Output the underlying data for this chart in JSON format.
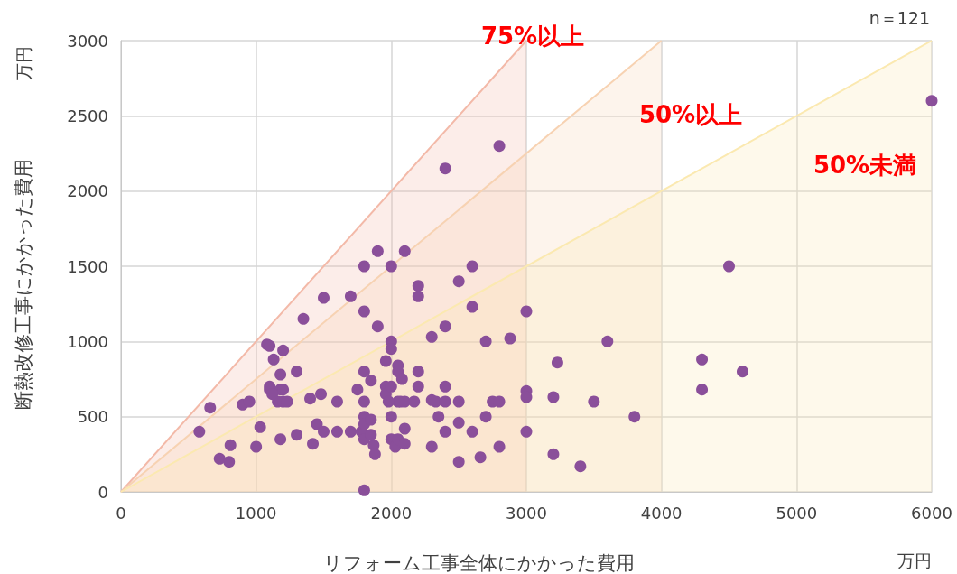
{
  "chart_data": {
    "type": "scatter",
    "xlabel": "リフォーム工事全体にかかった費用",
    "ylabel": "断熱改修工事にかかった費用",
    "xlim": [
      0,
      6000
    ],
    "xticks": [
      0,
      1000,
      2000,
      3000,
      4000,
      5000,
      6000
    ],
    "ylim": [
      0,
      3000
    ],
    "yticks": [
      0,
      500,
      1000,
      1500,
      2000,
      2500,
      3000
    ],
    "grid": true,
    "annotations": [
      "n＝121",
      "万円",
      "万円",
      "75%以上",
      "50%以上",
      "50%未満"
    ],
    "series": [
      {
        "type": "area",
        "color": "#f3b9a8",
        "marker": "none",
        "x": [
          0,
          3000
        ],
        "values": [
          0,
          3000
        ]
      },
      {
        "type": "area",
        "color": "#f7d2b2",
        "marker": "none",
        "x": [
          0,
          4000
        ],
        "values": [
          0,
          3000
        ]
      },
      {
        "type": "area",
        "color": "#fbe9b0",
        "marker": "none",
        "x": [
          0,
          6000
        ],
        "values": [
          0,
          3000
        ]
      },
      {
        "color": "#8a4f9a",
        "marker": "circle",
        "x": [
          580,
          660,
          730,
          800,
          810,
          900,
          950,
          1000,
          1030,
          1080,
          1100,
          1100,
          1100,
          1130,
          1160,
          1180,
          1180,
          1200,
          1200,
          1180,
          1200,
          1230,
          1300,
          1300,
          1350,
          1400,
          1420,
          1450,
          1480,
          1500,
          1500,
          1600,
          1600,
          1700,
          1700,
          1750,
          1780,
          1800,
          1800,
          1800,
          1800,
          1800,
          1800,
          1800,
          1800,
          1850,
          1850,
          1870,
          1880,
          1900,
          1900,
          1960,
          1960,
          1960,
          2000,
          2000,
          2000,
          2000,
          2000,
          2000,
          2030,
          2050,
          2050,
          2050,
          2070,
          2080,
          2100,
          2100,
          2100,
          2100,
          2170,
          2200,
          2200,
          2200,
          2200,
          2300,
          2300,
          2300,
          2330,
          2350,
          2400,
          2400,
          2400,
          2400,
          2500,
          2500,
          2500,
          2500,
          2600,
          2600,
          2600,
          2660,
          2700,
          2700,
          2750,
          2800,
          2800,
          2800,
          2880,
          3000,
          3000,
          3000,
          3000,
          3200,
          3200,
          3230,
          3400,
          3500,
          3600,
          3800,
          4300,
          4300,
          4500,
          4600,
          6000,
          1120,
          2050,
          1980,
          1850,
          2400
        ],
        "values": [
          400,
          560,
          220,
          200,
          310,
          580,
          600,
          300,
          430,
          980,
          970,
          700,
          680,
          880,
          600,
          780,
          680,
          680,
          940,
          350,
          600,
          600,
          800,
          380,
          1150,
          620,
          320,
          450,
          650,
          1290,
          400,
          600,
          400,
          1300,
          400,
          680,
          400,
          1500,
          1200,
          800,
          600,
          500,
          450,
          350,
          10,
          740,
          480,
          310,
          250,
          1600,
          1100,
          870,
          700,
          650,
          1500,
          1000,
          950,
          700,
          500,
          350,
          300,
          840,
          800,
          350,
          600,
          750,
          1600,
          600,
          420,
          320,
          600,
          1370,
          1300,
          800,
          700,
          1030,
          610,
          300,
          600,
          500,
          2150,
          1100,
          700,
          400,
          1400,
          600,
          460,
          200,
          1500,
          1230,
          400,
          230,
          1000,
          500,
          600,
          2300,
          600,
          300,
          1020,
          1200,
          670,
          630,
          400,
          630,
          250,
          860,
          170,
          600,
          1000,
          500,
          880,
          680,
          1500,
          800,
          2600,
          650,
          600,
          600,
          380,
          600
        ]
      }
    ]
  }
}
